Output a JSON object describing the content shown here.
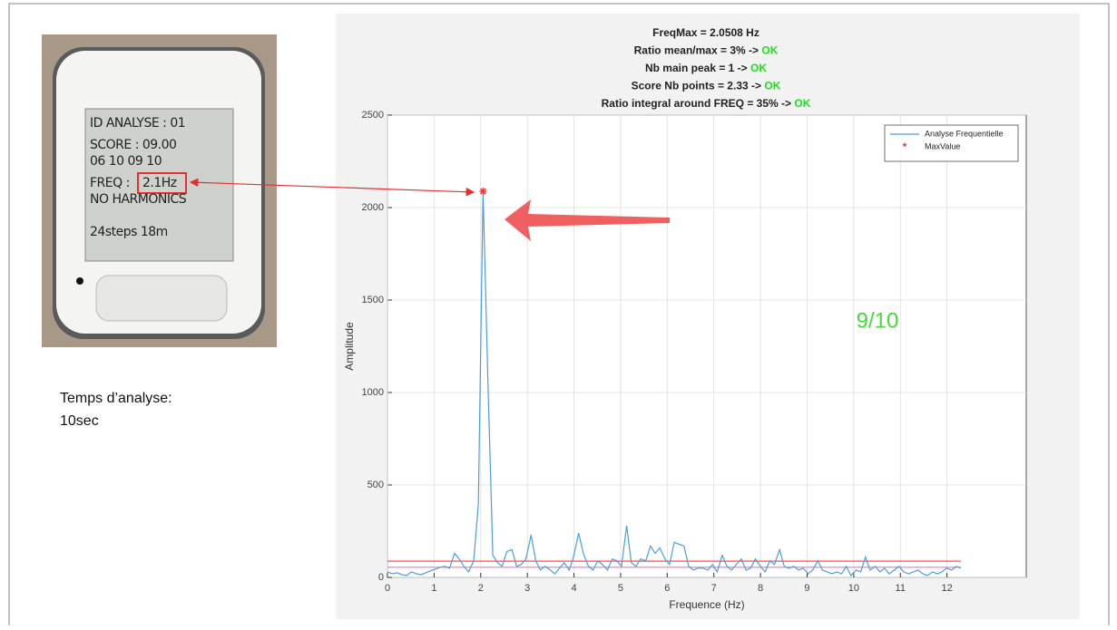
{
  "photo": {
    "screen_lines": [
      "ID ANALYSE : 01",
      "SCORE : 09.00",
      "06 10 09 10",
      "FREQ : ",
      "NO HARMONICS",
      "24steps 18m"
    ],
    "freq_value": "2.1Hz"
  },
  "caption": [
    "Temps d’analyse:",
    "10sec"
  ],
  "chart_data": {
    "type": "line",
    "title_lines": [
      {
        "text": "FreqMax = 2.0508 Hz"
      },
      {
        "text": "Ratio mean/max = 3%  ->",
        "status": "OK"
      },
      {
        "text": "Nb main peak = 1  ->",
        "status": "OK"
      },
      {
        "text": "Score Nb points = 2.33  ->",
        "status": "OK"
      },
      {
        "text": "Ratio integral around FREQ = 35%  ->",
        "status": "OK"
      }
    ],
    "status_color": "#22dd22",
    "annotation": {
      "text": "9/10",
      "color": "#44dd33"
    },
    "x_label": "Frequence (Hz)",
    "y_label": "Amplitude",
    "x": [
      0,
      0.1,
      0.21,
      0.31,
      0.41,
      0.51,
      0.62,
      0.72,
      0.82,
      0.92,
      1.03,
      1.13,
      1.23,
      1.33,
      1.44,
      1.54,
      1.64,
      1.74,
      1.85,
      1.95,
      2.05,
      2.15,
      2.26,
      2.36,
      2.46,
      2.56,
      2.67,
      2.77,
      2.87,
      2.97,
      3.08,
      3.18,
      3.28,
      3.38,
      3.49,
      3.59,
      3.69,
      3.79,
      3.9,
      4.0,
      4.1,
      4.2,
      4.31,
      4.41,
      4.51,
      4.61,
      4.72,
      4.82,
      4.92,
      5.02,
      5.13,
      5.23,
      5.33,
      5.43,
      5.54,
      5.64,
      5.74,
      5.84,
      5.95,
      6.05,
      6.15,
      6.25,
      6.36,
      6.46,
      6.56,
      6.66,
      6.77,
      6.87,
      6.97,
      7.07,
      7.18,
      7.28,
      7.38,
      7.48,
      7.59,
      7.69,
      7.79,
      7.89,
      8.0,
      8.1,
      8.2,
      8.3,
      8.41,
      8.51,
      8.61,
      8.71,
      8.82,
      8.92,
      9.02,
      9.12,
      9.23,
      9.33,
      9.43,
      9.53,
      9.64,
      9.74,
      9.84,
      9.94,
      10.05,
      10.15,
      10.25,
      10.35,
      10.46,
      10.56,
      10.66,
      10.76,
      10.87,
      10.97,
      11.07,
      11.17,
      11.28,
      11.38,
      11.48,
      11.58,
      11.69,
      11.79,
      11.89,
      11.99,
      12.1,
      12.2,
      12.3
    ],
    "series": [
      {
        "name": "Analyse Frequentielle",
        "color": "#4a9fd8",
        "values": [
          30,
          20,
          25,
          15,
          10,
          30,
          20,
          15,
          25,
          35,
          45,
          55,
          60,
          50,
          130,
          100,
          60,
          30,
          90,
          400,
          2088,
          1100,
          120,
          80,
          60,
          140,
          150,
          60,
          70,
          100,
          230,
          90,
          40,
          60,
          40,
          20,
          50,
          80,
          40,
          120,
          240,
          130,
          60,
          40,
          90,
          70,
          40,
          100,
          90,
          60,
          280,
          80,
          60,
          100,
          90,
          170,
          130,
          160,
          100,
          70,
          190,
          180,
          170,
          60,
          40,
          50,
          50,
          40,
          70,
          30,
          120,
          60,
          40,
          70,
          100,
          40,
          50,
          100,
          60,
          30,
          90,
          70,
          150,
          60,
          50,
          60,
          40,
          50,
          20,
          40,
          90,
          40,
          30,
          20,
          30,
          20,
          60,
          10,
          40,
          30,
          110,
          40,
          60,
          30,
          50,
          20,
          40,
          60,
          30,
          20,
          30,
          40,
          20,
          10,
          30,
          20,
          30,
          50,
          40,
          60,
          50
        ]
      },
      {
        "name": "MaxValue",
        "color": "#ff3333",
        "x": [
          2.0508
        ],
        "values": [
          2088
        ]
      }
    ],
    "reference_lines": [
      {
        "value": 88,
        "color": "#ff5a5a"
      },
      {
        "value": 55,
        "color": "#ff77dd"
      }
    ],
    "xlim": [
      0,
      13.7
    ],
    "xticks": [
      0,
      1,
      2,
      3,
      4,
      5,
      6,
      7,
      8,
      9,
      10,
      11,
      12
    ],
    "ylim": [
      0,
      2500
    ],
    "yticks": [
      0,
      500,
      1000,
      1500,
      2000,
      2500
    ],
    "grid": true,
    "legend": "top-right"
  }
}
